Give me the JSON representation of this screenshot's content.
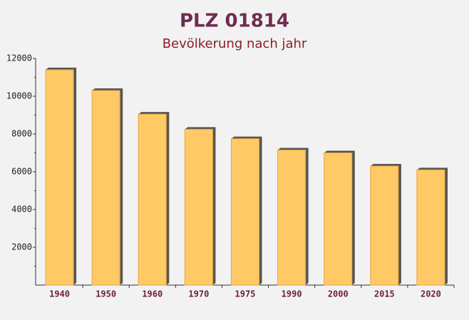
{
  "chart_data": {
    "type": "bar",
    "title": "PLZ 01814",
    "subtitle": "Bevölkerung nach jahr",
    "categories": [
      "1940",
      "1950",
      "1960",
      "1970",
      "1975",
      "1990",
      "2000",
      "2015",
      "2020"
    ],
    "values": [
      11400,
      10300,
      9050,
      8250,
      7750,
      7150,
      7000,
      6300,
      6100
    ],
    "color": "#ffc966",
    "ylim": [
      0,
      12000
    ],
    "yticks": [
      2000,
      4000,
      6000,
      8000,
      10000,
      12000
    ],
    "grid": false
  }
}
